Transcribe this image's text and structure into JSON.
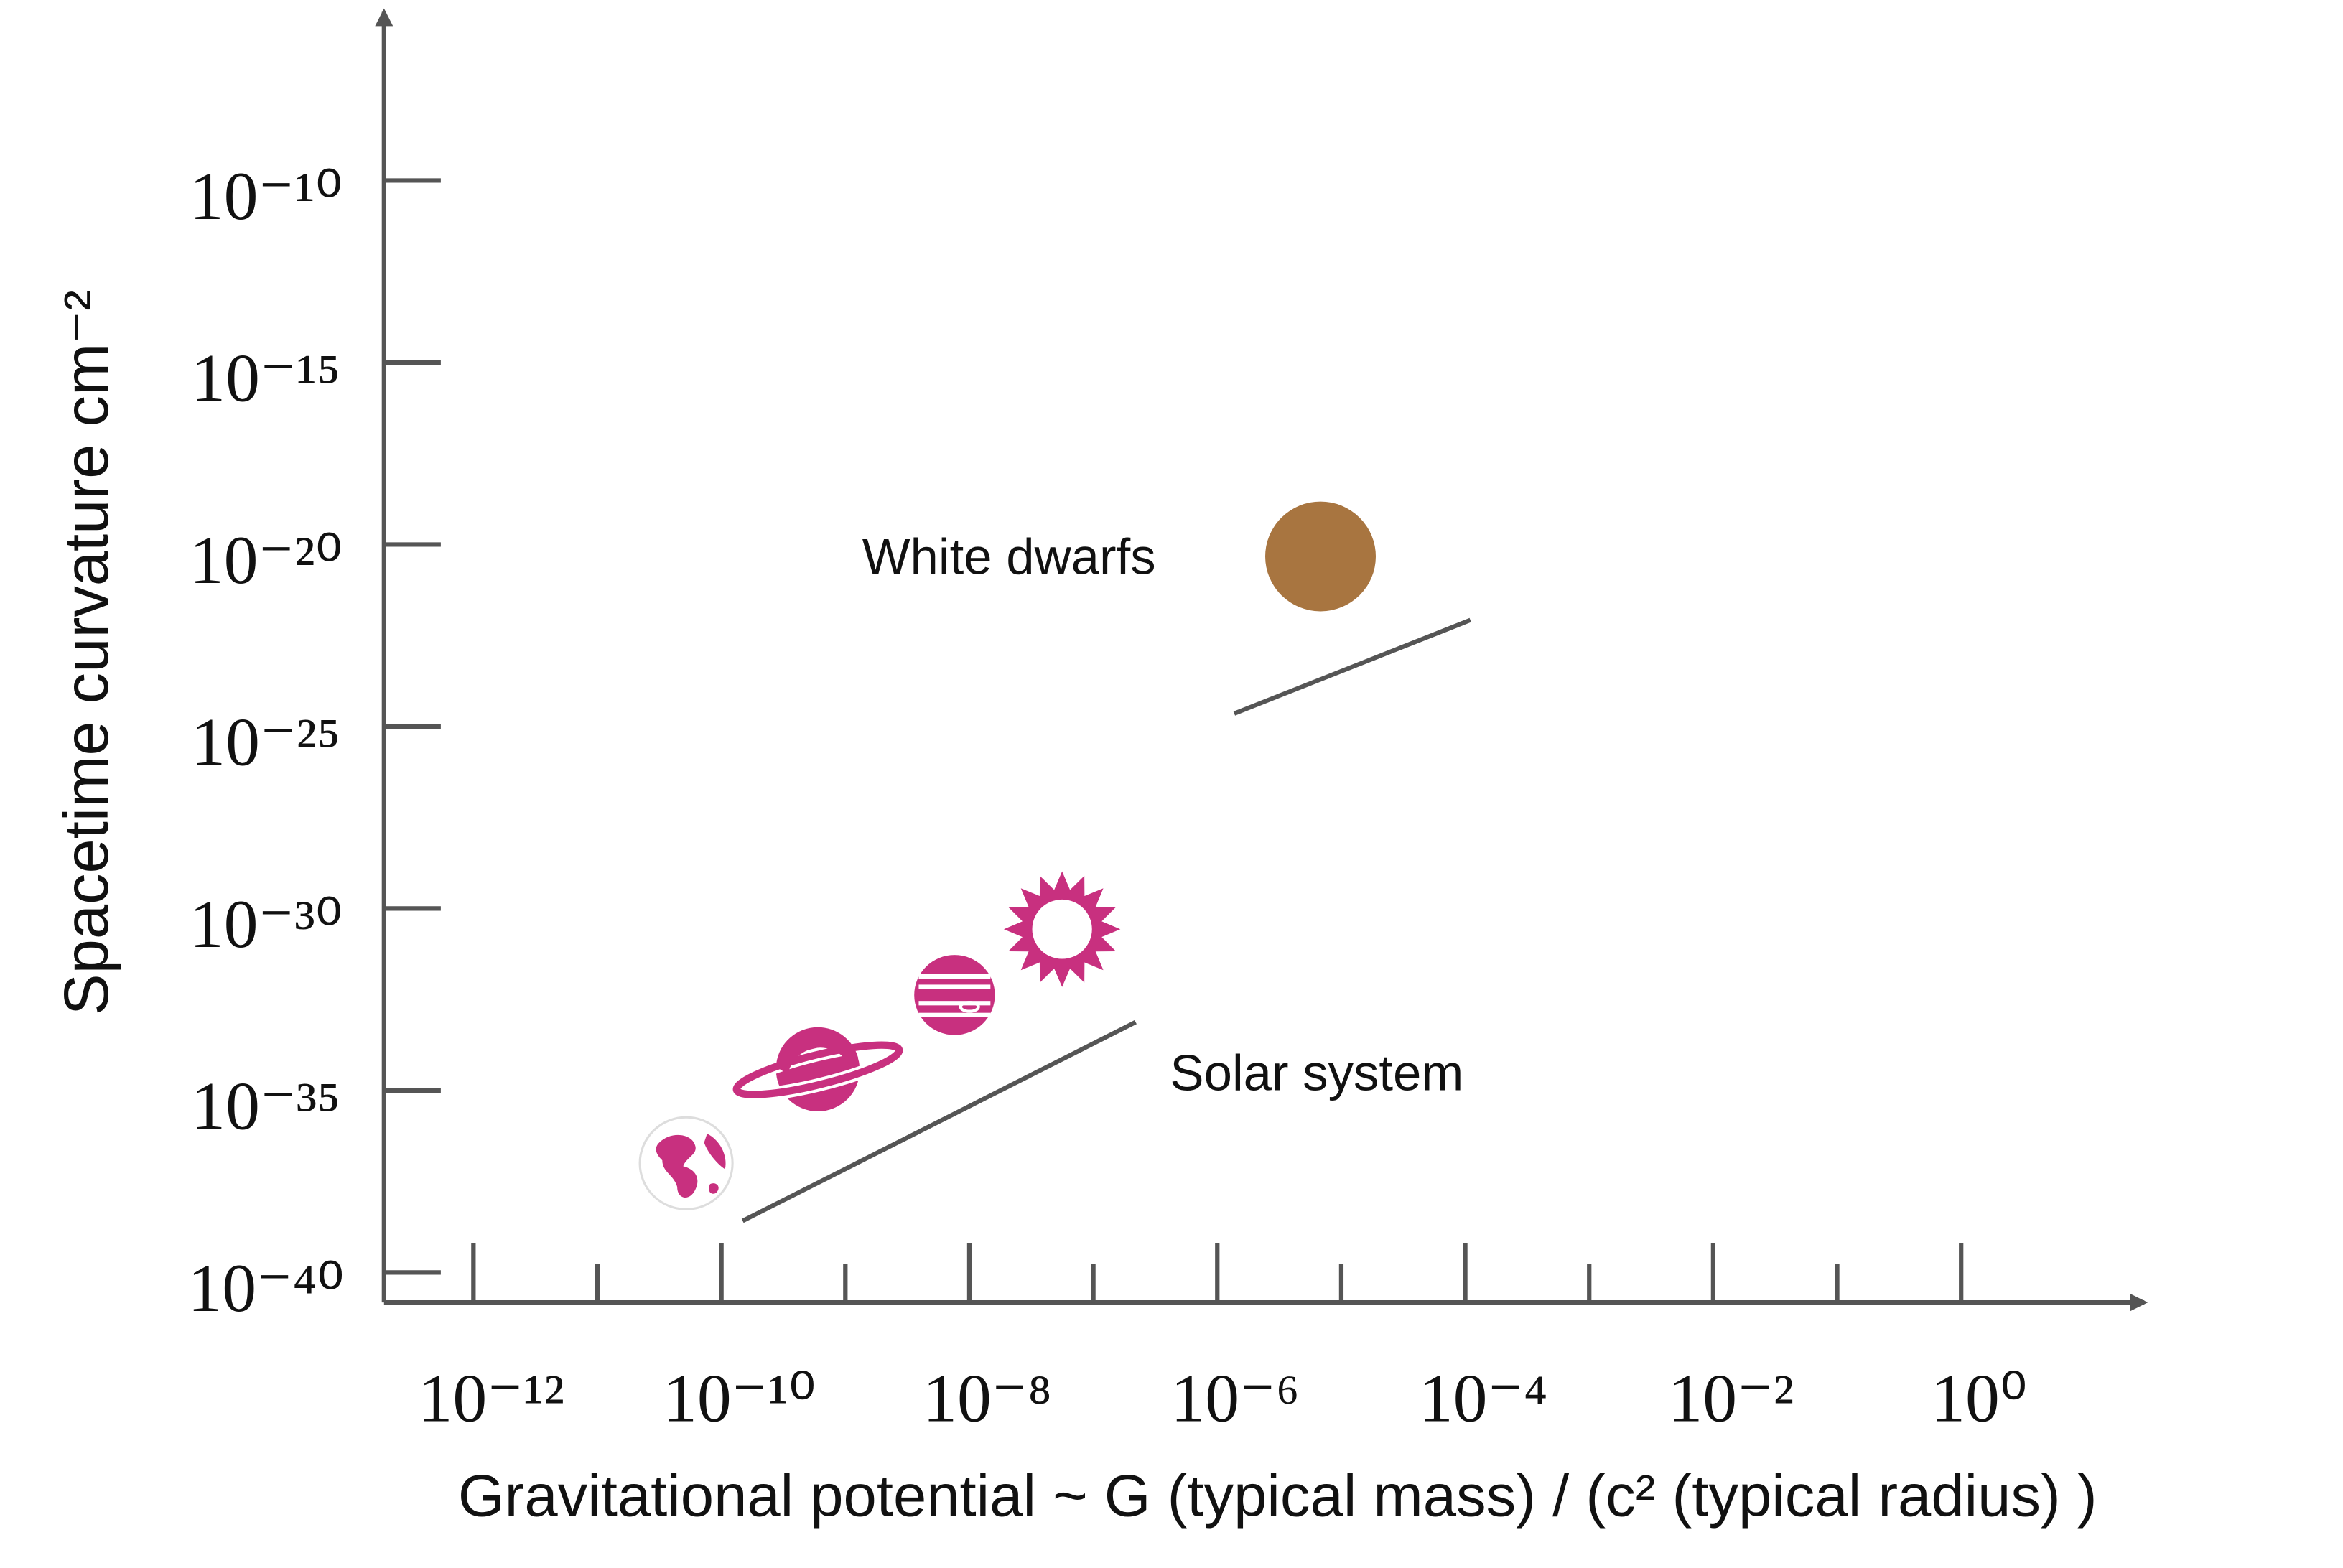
{
  "chart_data": {
    "type": "scatter",
    "x_label": "Gravitational potential ~ G (typical mass) / (c² (typical radius) )",
    "y_label": "Spacetime curvature  cm⁻²",
    "x_scale": "log",
    "y_scale": "log",
    "xlim": [
      1.9e-13,
      30
    ],
    "ylim": [
      1.5e-41,
      4.3e-06
    ],
    "xticks": [
      {
        "value": 1e-12,
        "label": "10⁻¹²"
      },
      {
        "value": 1e-10,
        "label": "10⁻¹⁰"
      },
      {
        "value": 1e-08,
        "label": "10⁻⁸"
      },
      {
        "value": 1e-06,
        "label": "10⁻⁶"
      },
      {
        "value": 0.0001,
        "label": "10⁻⁴"
      },
      {
        "value": 0.01,
        "label": "10⁻²"
      },
      {
        "value": 1,
        "label": "10⁰"
      }
    ],
    "xminor_ticks": [
      1e-11,
      1e-09,
      1e-07,
      1e-05,
      0.001,
      0.1
    ],
    "yticks": [
      {
        "value": 1e-10,
        "label": "10⁻¹⁰"
      },
      {
        "value": 1e-15,
        "label": "10⁻¹⁵"
      },
      {
        "value": 1e-20,
        "label": "10⁻²⁰"
      },
      {
        "value": 1e-25,
        "label": "10⁻²⁵"
      },
      {
        "value": 1e-30,
        "label": "10⁻³⁰"
      },
      {
        "value": 1e-35,
        "label": "10⁻³⁵"
      },
      {
        "value": 1e-40,
        "label": "10⁻⁴⁰"
      }
    ],
    "series": [
      {
        "name": "Solar system",
        "color": "#c8307f",
        "x": [
          5.2e-11,
          6e-10,
          7.6e-09,
          5.6e-08
        ],
        "y": [
          1e-37,
          3.7e-35,
          4.2e-33,
          2.7e-31
        ]
      },
      {
        "name": "White dwarfs",
        "color": "#a87540",
        "x": [
          6.8e-06
        ],
        "y": [
          4.7e-21
        ]
      }
    ]
  }
}
